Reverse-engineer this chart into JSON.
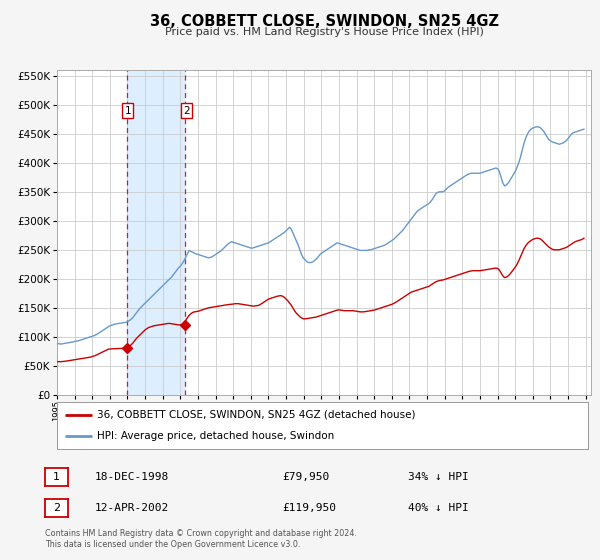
{
  "title": "36, COBBETT CLOSE, SWINDON, SN25 4GZ",
  "subtitle": "Price paid vs. HM Land Registry's House Price Index (HPI)",
  "legend_label_red": "36, COBBETT CLOSE, SWINDON, SN25 4GZ (detached house)",
  "legend_label_blue": "HPI: Average price, detached house, Swindon",
  "transaction1_label": "18-DEC-1998",
  "transaction1_price": "£79,950",
  "transaction1_hpi": "34% ↓ HPI",
  "transaction2_label": "12-APR-2002",
  "transaction2_price": "£119,950",
  "transaction2_hpi": "40% ↓ HPI",
  "footer": "Contains HM Land Registry data © Crown copyright and database right 2024.\nThis data is licensed under the Open Government Licence v3.0.",
  "transaction1_year": 1998.96,
  "transaction2_year": 2002.28,
  "transaction1_value": 79950,
  "transaction2_value": 119950,
  "ylim_max": 560000,
  "ylim_tick_max": 550000,
  "bg_color": "#f5f5f5",
  "plot_bg_color": "#ffffff",
  "red_color": "#cc0000",
  "blue_color": "#6699cc",
  "shade_color": "#ddeeff",
  "grid_color": "#cccccc",
  "years_hpi": [
    1995.0,
    1995.1,
    1995.2,
    1995.3,
    1995.4,
    1995.5,
    1995.6,
    1995.7,
    1995.8,
    1995.9,
    1996.0,
    1996.1,
    1996.2,
    1996.3,
    1996.4,
    1996.5,
    1996.6,
    1996.7,
    1996.8,
    1996.9,
    1997.0,
    1997.1,
    1997.2,
    1997.3,
    1997.4,
    1997.5,
    1997.6,
    1997.7,
    1997.8,
    1997.9,
    1998.0,
    1998.1,
    1998.2,
    1998.3,
    1998.4,
    1998.5,
    1998.6,
    1998.7,
    1998.8,
    1998.9,
    1999.0,
    1999.1,
    1999.2,
    1999.3,
    1999.4,
    1999.5,
    1999.6,
    1999.7,
    1999.8,
    1999.9,
    2000.0,
    2000.1,
    2000.2,
    2000.3,
    2000.4,
    2000.5,
    2000.6,
    2000.7,
    2000.8,
    2000.9,
    2001.0,
    2001.1,
    2001.2,
    2001.3,
    2001.4,
    2001.5,
    2001.6,
    2001.7,
    2001.8,
    2001.9,
    2002.0,
    2002.1,
    2002.2,
    2002.3,
    2002.4,
    2002.5,
    2002.6,
    2002.7,
    2002.8,
    2002.9,
    2003.0,
    2003.1,
    2003.2,
    2003.3,
    2003.4,
    2003.5,
    2003.6,
    2003.7,
    2003.8,
    2003.9,
    2004.0,
    2004.1,
    2004.2,
    2004.3,
    2004.4,
    2004.5,
    2004.6,
    2004.7,
    2004.8,
    2004.9,
    2005.0,
    2005.1,
    2005.2,
    2005.3,
    2005.4,
    2005.5,
    2005.6,
    2005.7,
    2005.8,
    2005.9,
    2006.0,
    2006.1,
    2006.2,
    2006.3,
    2006.4,
    2006.5,
    2006.6,
    2006.7,
    2006.8,
    2006.9,
    2007.0,
    2007.1,
    2007.2,
    2007.3,
    2007.4,
    2007.5,
    2007.6,
    2007.7,
    2007.8,
    2007.9,
    2008.0,
    2008.1,
    2008.2,
    2008.3,
    2008.4,
    2008.5,
    2008.6,
    2008.7,
    2008.8,
    2008.9,
    2009.0,
    2009.1,
    2009.2,
    2009.3,
    2009.4,
    2009.5,
    2009.6,
    2009.7,
    2009.8,
    2009.9,
    2010.0,
    2010.1,
    2010.2,
    2010.3,
    2010.4,
    2010.5,
    2010.6,
    2010.7,
    2010.8,
    2010.9,
    2011.0,
    2011.1,
    2011.2,
    2011.3,
    2011.4,
    2011.5,
    2011.6,
    2011.7,
    2011.8,
    2011.9,
    2012.0,
    2012.1,
    2012.2,
    2012.3,
    2012.4,
    2012.5,
    2012.6,
    2012.7,
    2012.8,
    2012.9,
    2013.0,
    2013.1,
    2013.2,
    2013.3,
    2013.4,
    2013.5,
    2013.6,
    2013.7,
    2013.8,
    2013.9,
    2014.0,
    2014.1,
    2014.2,
    2014.3,
    2014.4,
    2014.5,
    2014.6,
    2014.7,
    2014.8,
    2014.9,
    2015.0,
    2015.1,
    2015.2,
    2015.3,
    2015.4,
    2015.5,
    2015.6,
    2015.7,
    2015.8,
    2015.9,
    2016.0,
    2016.1,
    2016.2,
    2016.3,
    2016.4,
    2016.5,
    2016.6,
    2016.7,
    2016.8,
    2016.9,
    2017.0,
    2017.1,
    2017.2,
    2017.3,
    2017.4,
    2017.5,
    2017.6,
    2017.7,
    2017.8,
    2017.9,
    2018.0,
    2018.1,
    2018.2,
    2018.3,
    2018.4,
    2018.5,
    2018.6,
    2018.7,
    2018.8,
    2018.9,
    2019.0,
    2019.1,
    2019.2,
    2019.3,
    2019.4,
    2019.5,
    2019.6,
    2019.7,
    2019.8,
    2019.9,
    2020.0,
    2020.1,
    2020.2,
    2020.3,
    2020.4,
    2020.5,
    2020.6,
    2020.7,
    2020.8,
    2020.9,
    2021.0,
    2021.1,
    2021.2,
    2021.3,
    2021.4,
    2021.5,
    2021.6,
    2021.7,
    2021.8,
    2021.9,
    2022.0,
    2022.1,
    2022.2,
    2022.3,
    2022.4,
    2022.5,
    2022.6,
    2022.7,
    2022.8,
    2022.9,
    2023.0,
    2023.1,
    2023.2,
    2023.3,
    2023.4,
    2023.5,
    2023.6,
    2023.7,
    2023.8,
    2023.9,
    2024.0,
    2024.1,
    2024.2,
    2024.3,
    2024.4,
    2024.5,
    2024.6,
    2024.7,
    2024.8,
    2024.9
  ],
  "hpi_values": [
    88000,
    88200,
    87500,
    87800,
    88500,
    89000,
    89500,
    90000,
    90500,
    91000,
    92000,
    92500,
    93000,
    94000,
    95000,
    96000,
    97000,
    98000,
    99000,
    100000,
    101000,
    102000,
    103500,
    105000,
    107000,
    109000,
    111000,
    113000,
    115000,
    117000,
    119000,
    120000,
    121000,
    122000,
    122500,
    123000,
    123500,
    124000,
    124500,
    125000,
    126000,
    128000,
    130000,
    133000,
    137000,
    141000,
    145000,
    149000,
    152000,
    155000,
    158000,
    161000,
    164000,
    167000,
    170000,
    173000,
    176000,
    179000,
    182000,
    185000,
    188000,
    191000,
    194000,
    197000,
    200000,
    203000,
    207000,
    211000,
    215000,
    219000,
    222000,
    226000,
    231000,
    237000,
    243000,
    249000,
    247000,
    246000,
    244000,
    243000,
    242000,
    241000,
    240000,
    239000,
    238000,
    237000,
    236000,
    237000,
    238000,
    240000,
    242000,
    244000,
    246000,
    248000,
    251000,
    254000,
    257000,
    260000,
    262000,
    264000,
    263000,
    262000,
    261000,
    260000,
    259000,
    258000,
    257000,
    256000,
    255000,
    254000,
    253000,
    253000,
    254000,
    255000,
    256000,
    257000,
    258000,
    259000,
    260000,
    261000,
    262000,
    264000,
    266000,
    268000,
    270000,
    272000,
    274000,
    276000,
    278000,
    280000,
    283000,
    286000,
    289000,
    285000,
    278000,
    271000,
    264000,
    257000,
    248000,
    240000,
    235000,
    232000,
    229000,
    228000,
    228000,
    229000,
    231000,
    234000,
    237000,
    241000,
    244000,
    246000,
    248000,
    250000,
    252000,
    254000,
    256000,
    258000,
    260000,
    262000,
    261000,
    260000,
    259000,
    258000,
    257000,
    256000,
    255000,
    254000,
    253000,
    252000,
    251000,
    250000,
    249000,
    249000,
    249000,
    249000,
    249000,
    250000,
    250000,
    251000,
    252000,
    253000,
    254000,
    255000,
    256000,
    257000,
    258000,
    260000,
    262000,
    264000,
    266000,
    268000,
    271000,
    274000,
    277000,
    280000,
    283000,
    287000,
    291000,
    295000,
    299000,
    303000,
    307000,
    311000,
    315000,
    318000,
    320000,
    322000,
    324000,
    326000,
    328000,
    330000,
    333000,
    337000,
    342000,
    347000,
    349000,
    350000,
    350000,
    350000,
    352000,
    355000,
    358000,
    360000,
    362000,
    364000,
    366000,
    368000,
    370000,
    372000,
    374000,
    376000,
    378000,
    380000,
    381000,
    382000,
    382000,
    382000,
    382000,
    382000,
    382000,
    383000,
    384000,
    385000,
    386000,
    387000,
    388000,
    389000,
    390000,
    391000,
    390000,
    385000,
    375000,
    365000,
    360000,
    362000,
    365000,
    370000,
    375000,
    380000,
    385000,
    392000,
    400000,
    410000,
    422000,
    434000,
    443000,
    450000,
    455000,
    458000,
    460000,
    461000,
    462000,
    462000,
    461000,
    458000,
    455000,
    450000,
    445000,
    440000,
    438000,
    436000,
    435000,
    434000,
    433000,
    432000,
    433000,
    434000,
    436000,
    438000,
    442000,
    446000,
    450000,
    452000,
    453000,
    454000,
    455000,
    456000,
    457000,
    458000
  ],
  "years_red": [
    1995.0,
    1995.1,
    1995.2,
    1995.3,
    1995.4,
    1995.5,
    1995.6,
    1995.7,
    1995.8,
    1995.9,
    1996.0,
    1996.1,
    1996.2,
    1996.3,
    1996.4,
    1996.5,
    1996.6,
    1996.7,
    1996.8,
    1996.9,
    1997.0,
    1997.1,
    1997.2,
    1997.3,
    1997.4,
    1997.5,
    1997.6,
    1997.7,
    1997.8,
    1997.9,
    1998.0,
    1998.1,
    1998.2,
    1998.3,
    1998.4,
    1998.5,
    1998.6,
    1998.7,
    1998.8,
    1998.9,
    1999.0,
    1999.1,
    1999.2,
    1999.3,
    1999.4,
    1999.5,
    1999.6,
    1999.7,
    1999.8,
    1999.9,
    2000.0,
    2000.1,
    2000.2,
    2000.3,
    2000.4,
    2000.5,
    2000.6,
    2000.7,
    2000.8,
    2000.9,
    2001.0,
    2001.1,
    2001.2,
    2001.3,
    2001.4,
    2001.5,
    2001.6,
    2001.7,
    2001.8,
    2001.9,
    2002.0,
    2002.1,
    2002.2,
    2002.3,
    2002.4,
    2002.5,
    2002.6,
    2002.7,
    2002.8,
    2002.9,
    2003.0,
    2003.1,
    2003.2,
    2003.3,
    2003.4,
    2003.5,
    2003.6,
    2003.7,
    2003.8,
    2003.9,
    2004.0,
    2004.1,
    2004.2,
    2004.3,
    2004.4,
    2004.5,
    2004.6,
    2004.7,
    2004.8,
    2004.9,
    2005.0,
    2005.1,
    2005.2,
    2005.3,
    2005.4,
    2005.5,
    2005.6,
    2005.7,
    2005.8,
    2005.9,
    2006.0,
    2006.1,
    2006.2,
    2006.3,
    2006.4,
    2006.5,
    2006.6,
    2006.7,
    2006.8,
    2006.9,
    2007.0,
    2007.1,
    2007.2,
    2007.3,
    2007.4,
    2007.5,
    2007.6,
    2007.7,
    2007.8,
    2007.9,
    2008.0,
    2008.1,
    2008.2,
    2008.3,
    2008.4,
    2008.5,
    2008.6,
    2008.7,
    2008.8,
    2008.9,
    2009.0,
    2009.1,
    2009.2,
    2009.3,
    2009.4,
    2009.5,
    2009.6,
    2009.7,
    2009.8,
    2009.9,
    2010.0,
    2010.1,
    2010.2,
    2010.3,
    2010.4,
    2010.5,
    2010.6,
    2010.7,
    2010.8,
    2010.9,
    2011.0,
    2011.1,
    2011.2,
    2011.3,
    2011.4,
    2011.5,
    2011.6,
    2011.7,
    2011.8,
    2011.9,
    2012.0,
    2012.1,
    2012.2,
    2012.3,
    2012.4,
    2012.5,
    2012.6,
    2012.7,
    2012.8,
    2012.9,
    2013.0,
    2013.1,
    2013.2,
    2013.3,
    2013.4,
    2013.5,
    2013.6,
    2013.7,
    2013.8,
    2013.9,
    2014.0,
    2014.1,
    2014.2,
    2014.3,
    2014.4,
    2014.5,
    2014.6,
    2014.7,
    2014.8,
    2014.9,
    2015.0,
    2015.1,
    2015.2,
    2015.3,
    2015.4,
    2015.5,
    2015.6,
    2015.7,
    2015.8,
    2015.9,
    2016.0,
    2016.1,
    2016.2,
    2016.3,
    2016.4,
    2016.5,
    2016.6,
    2016.7,
    2016.8,
    2016.9,
    2017.0,
    2017.1,
    2017.2,
    2017.3,
    2017.4,
    2017.5,
    2017.6,
    2017.7,
    2017.8,
    2017.9,
    2018.0,
    2018.1,
    2018.2,
    2018.3,
    2018.4,
    2018.5,
    2018.6,
    2018.7,
    2018.8,
    2018.9,
    2019.0,
    2019.1,
    2019.2,
    2019.3,
    2019.4,
    2019.5,
    2019.6,
    2019.7,
    2019.8,
    2019.9,
    2020.0,
    2020.1,
    2020.2,
    2020.3,
    2020.4,
    2020.5,
    2020.6,
    2020.7,
    2020.8,
    2020.9,
    2021.0,
    2021.1,
    2021.2,
    2021.3,
    2021.4,
    2021.5,
    2021.6,
    2021.7,
    2021.8,
    2021.9,
    2022.0,
    2022.1,
    2022.2,
    2022.3,
    2022.4,
    2022.5,
    2022.6,
    2022.7,
    2022.8,
    2022.9,
    2023.0,
    2023.1,
    2023.2,
    2023.3,
    2023.4,
    2023.5,
    2023.6,
    2023.7,
    2023.8,
    2023.9,
    2024.0,
    2024.1,
    2024.2,
    2024.3,
    2024.4,
    2024.5,
    2024.6,
    2024.7,
    2024.8,
    2024.9
  ],
  "red_values": [
    57000,
    57200,
    57000,
    57300,
    57500,
    58000,
    58500,
    59000,
    59500,
    60000,
    60500,
    61000,
    61500,
    62000,
    62500,
    63000,
    63500,
    64000,
    64500,
    65000,
    66000,
    67000,
    68000,
    69500,
    71000,
    72500,
    74000,
    75500,
    77000,
    78500,
    79000,
    79200,
    79400,
    79500,
    79700,
    79800,
    79900,
    80000,
    80100,
    79950,
    81000,
    83000,
    86000,
    89000,
    93000,
    97000,
    100000,
    103000,
    106000,
    109000,
    112000,
    114000,
    116000,
    117000,
    118000,
    119000,
    119500,
    120000,
    120500,
    121000,
    121500,
    122000,
    122500,
    123000,
    123000,
    122500,
    122000,
    121500,
    121000,
    120500,
    120500,
    121000,
    121500,
    128000,
    133000,
    137000,
    140000,
    142000,
    143000,
    143500,
    144000,
    145000,
    146000,
    147000,
    148000,
    149000,
    150000,
    150500,
    151000,
    151500,
    152000,
    152500,
    153000,
    153500,
    154000,
    154500,
    155000,
    155500,
    155800,
    156000,
    156500,
    157000,
    157200,
    157000,
    156500,
    156000,
    155500,
    155000,
    154500,
    154000,
    153500,
    153000,
    153000,
    153500,
    154000,
    155000,
    157000,
    159000,
    161000,
    163000,
    165000,
    166000,
    167000,
    168000,
    169000,
    170000,
    170500,
    171000,
    170000,
    168000,
    165000,
    162000,
    158000,
    154000,
    149000,
    144000,
    140000,
    137000,
    134000,
    132000,
    131000,
    131000,
    131500,
    132000,
    132500,
    133000,
    133500,
    134000,
    135000,
    136000,
    137000,
    138000,
    139000,
    140000,
    141000,
    142000,
    143000,
    144000,
    145000,
    146000,
    146500,
    146000,
    145500,
    145000,
    145000,
    145000,
    145000,
    145000,
    145000,
    144500,
    144000,
    143500,
    143000,
    143000,
    143000,
    143500,
    144000,
    144500,
    145000,
    145500,
    146000,
    147000,
    148000,
    149000,
    150000,
    151000,
    152000,
    153000,
    154000,
    155000,
    156000,
    157500,
    159000,
    161000,
    163000,
    165000,
    167000,
    169000,
    171000,
    173000,
    175000,
    177000,
    178000,
    179000,
    180000,
    181000,
    182000,
    183000,
    184000,
    185000,
    186000,
    187000,
    189000,
    191000,
    193000,
    195000,
    196000,
    197000,
    197500,
    198000,
    199000,
    200000,
    201000,
    202000,
    203000,
    204000,
    205000,
    206000,
    207000,
    208000,
    209000,
    210000,
    211000,
    212000,
    213000,
    213500,
    214000,
    214000,
    214000,
    214000,
    214000,
    214500,
    215000,
    215500,
    216000,
    216500,
    217000,
    217500,
    218000,
    218500,
    218000,
    215000,
    210000,
    205000,
    202000,
    203000,
    205000,
    208000,
    212000,
    216000,
    220000,
    225000,
    231000,
    238000,
    245000,
    252000,
    257000,
    261000,
    264000,
    266000,
    268000,
    269000,
    270000,
    270000,
    269000,
    267000,
    264000,
    261000,
    258000,
    255000,
    253000,
    251000,
    250000,
    250000,
    250000,
    250000,
    251000,
    252000,
    253000,
    254000,
    256000,
    258000,
    260000,
    262000,
    264000,
    265000,
    266000,
    267000,
    268000,
    270000
  ]
}
